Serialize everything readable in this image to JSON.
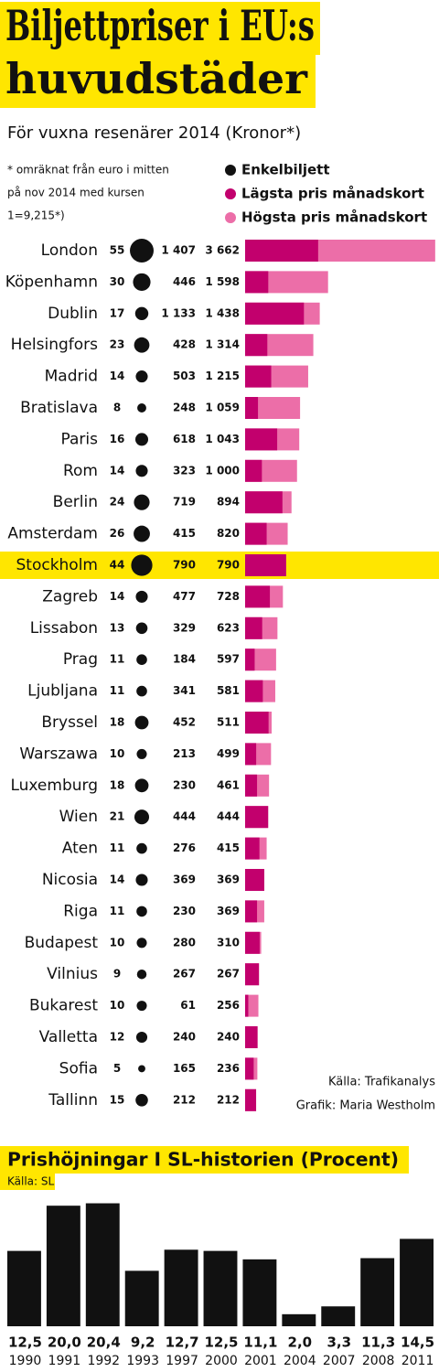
{
  "chart_data": [
    {
      "type": "hbar-bubble",
      "title": [
        "Biljettpriser i EU:s",
        "huvudstäder"
      ],
      "subtitle": "För vuxna resenärer 2014 (Kronor*)",
      "note": [
        "* omräknat från euro i mitten",
        "på nov 2014 med kursen",
        "1=9,215*)"
      ],
      "categories": [
        "London",
        "Köpenhamn",
        "Dublin",
        "Helsingfors",
        "Madrid",
        "Bratislava",
        "Paris",
        "Rom",
        "Berlin",
        "Amsterdam",
        "Stockholm",
        "Zagreb",
        "Lissabon",
        "Prag",
        "Ljubljana",
        "Bryssel",
        "Warszawa",
        "Luxemburg",
        "Wien",
        "Aten",
        "Nicosia",
        "Riga",
        "Budapest",
        "Vilnius",
        "Bukarest",
        "Valletta",
        "Sofia",
        "Tallinn"
      ],
      "highlight": "Stockholm",
      "series": [
        {
          "name": "Enkelbiljett",
          "color": "#111111",
          "values": [
            55,
            30,
            17,
            23,
            14,
            8,
            16,
            14,
            24,
            26,
            44,
            14,
            13,
            11,
            11,
            18,
            10,
            18,
            21,
            11,
            14,
            11,
            10,
            9,
            10,
            12,
            5,
            15
          ]
        },
        {
          "name": "Lägsta pris månadskort",
          "color": "#c2006d",
          "values": [
            1407,
            446,
            1133,
            428,
            503,
            248,
            618,
            323,
            719,
            415,
            790,
            477,
            329,
            184,
            341,
            452,
            213,
            230,
            444,
            276,
            369,
            230,
            280,
            267,
            61,
            240,
            165,
            212
          ],
          "value_labels": [
            "1 407",
            "446",
            "1 133",
            "428",
            "503",
            "248",
            "618",
            "323",
            "719",
            "415",
            "790",
            "477",
            "329",
            "184",
            "341",
            "452",
            "213",
            "230",
            "444",
            "276",
            "369",
            "230",
            "280",
            "267",
            "61",
            "240",
            "165",
            "212"
          ]
        },
        {
          "name": "Högsta pris månadskort",
          "color": "#ec6ea8",
          "values": [
            3662,
            1598,
            1438,
            1314,
            1215,
            1059,
            1043,
            1000,
            894,
            820,
            790,
            728,
            623,
            597,
            581,
            511,
            499,
            461,
            444,
            415,
            369,
            369,
            310,
            267,
            256,
            240,
            236,
            212
          ],
          "value_labels": [
            "3 662",
            "1 598",
            "1 438",
            "1 314",
            "1 215",
            "1 059",
            "1 043",
            "1 000",
            "894",
            "820",
            "790",
            "728",
            "623",
            "597",
            "581",
            "511",
            "499",
            "461",
            "444",
            "415",
            "369",
            "369",
            "310",
            "267",
            "256",
            "240",
            "236",
            "212"
          ]
        }
      ],
      "xlim": [
        0,
        3700
      ],
      "source": "Källa: Trafikanalys",
      "credit": "Grafik: Maria Westholm"
    },
    {
      "type": "bar",
      "title": "Prishöjningar I SL-historien (Procent)",
      "source": "Källa: SL",
      "categories": [
        "1990",
        "1991",
        "1992",
        "1993",
        "1997",
        "2000",
        "2001",
        "2004",
        "2007",
        "2008",
        "2011"
      ],
      "values": [
        12.5,
        20.0,
        20.4,
        9.2,
        12.7,
        12.5,
        11.1,
        2.0,
        3.3,
        11.3,
        14.5
      ],
      "value_labels": [
        "12,5",
        "20,0",
        "20,4",
        "9,2",
        "12,7",
        "12,5",
        "11,1",
        "2,0",
        "3,3",
        "11,3",
        "14,5"
      ],
      "color": "#111111",
      "ylim": [
        0,
        22
      ]
    }
  ]
}
